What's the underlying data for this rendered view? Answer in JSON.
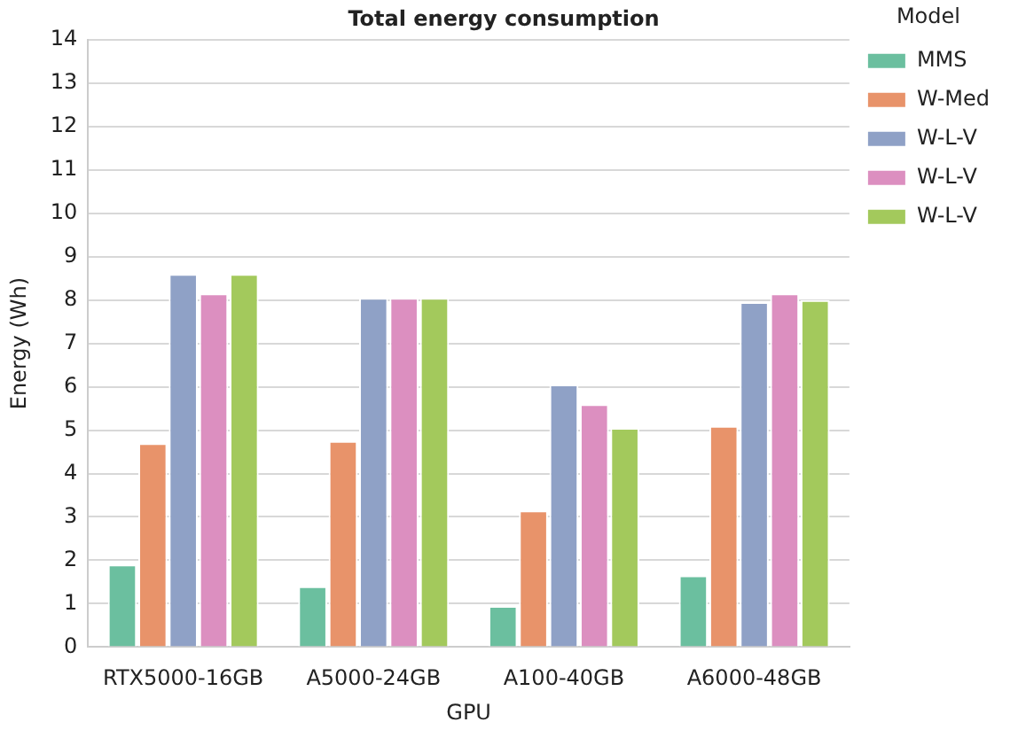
{
  "chart_data": {
    "type": "bar",
    "title": "Total energy consumption",
    "xlabel": "GPU",
    "ylabel": "Energy (Wh)",
    "legend_title": "Model",
    "categories": [
      "RTX5000-16GB",
      "A5000-24GB",
      "A100-40GB",
      "A6000-48GB"
    ],
    "series": [
      {
        "name": "MMS",
        "color": "#6bbf9f",
        "values": [
          1.9,
          1.4,
          0.95,
          1.65
        ]
      },
      {
        "name": "W-Med",
        "color": "#e8936a",
        "values": [
          4.7,
          4.75,
          3.15,
          5.1
        ]
      },
      {
        "name": "W-L-V",
        "color": "#8fa1c6",
        "values": [
          8.6,
          8.05,
          6.05,
          7.95
        ]
      },
      {
        "name": "W-L-V",
        "color": "#dc8fc0",
        "values": [
          8.15,
          8.05,
          5.6,
          8.15
        ]
      },
      {
        "name": "W-L-V",
        "color": "#a3c95c",
        "values": [
          8.6,
          8.05,
          5.05,
          8.0
        ]
      }
    ],
    "ylim": [
      0,
      14
    ],
    "yticks": [
      0,
      1,
      2,
      3,
      4,
      5,
      6,
      7,
      8,
      9,
      10,
      11,
      12,
      13,
      14
    ],
    "grid": "y",
    "legend": "top right"
  }
}
